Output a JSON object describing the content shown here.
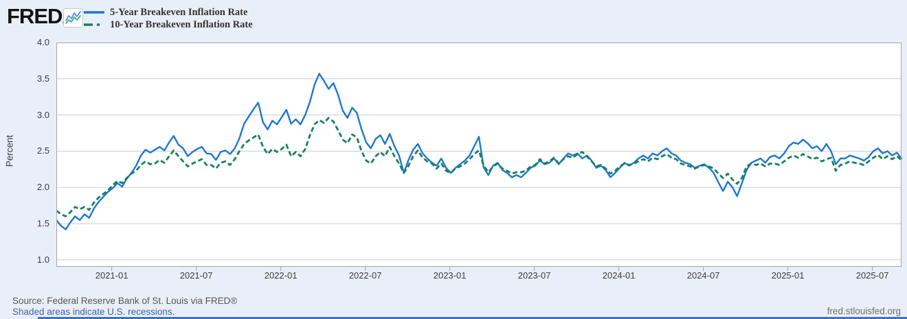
{
  "header": {
    "logo_text": "FRED",
    "logo_reg": "®",
    "legend": [
      {
        "label": "5-Year Breakeven Inflation Rate",
        "color": "#1d76d2",
        "dash": "solid"
      },
      {
        "label": "10-Year Breakeven Inflation Rate",
        "color": "#17805f",
        "dash": "dash-dot"
      }
    ]
  },
  "footer": {
    "source": "Source: Federal Reserve Bank of St. Louis via FRED®",
    "recessions_note": "Shaded areas indicate U.S. recessions.",
    "site": "fred.stlouisfed.org"
  },
  "chart_data": {
    "type": "line",
    "title": "",
    "xlabel": "",
    "ylabel": "Percent",
    "ylim": [
      0.9,
      4.0
    ],
    "yticks": [
      1.0,
      1.5,
      2.0,
      2.5,
      3.0,
      3.5,
      4.0
    ],
    "xtick_labels": [
      "2021-01",
      "2021-07",
      "2022-01",
      "2022-07",
      "2023-01",
      "2023-07",
      "2024-01",
      "2024-07",
      "2025-01",
      "2025-07"
    ],
    "x_start": "2020-09-05",
    "x_end": "2025-09-05",
    "points_per_month": 3,
    "grid": true,
    "legend_position": "top-left",
    "units": "Percent",
    "series": [
      {
        "name": "5-Year Breakeven Inflation Rate",
        "color": "#1d76d2",
        "dash": "solid",
        "values": [
          1.55,
          1.47,
          1.42,
          1.52,
          1.6,
          1.55,
          1.63,
          1.58,
          1.71,
          1.8,
          1.87,
          1.94,
          1.99,
          2.06,
          2.01,
          2.12,
          2.2,
          2.3,
          2.44,
          2.52,
          2.48,
          2.52,
          2.56,
          2.51,
          2.62,
          2.71,
          2.59,
          2.54,
          2.43,
          2.49,
          2.53,
          2.56,
          2.47,
          2.46,
          2.38,
          2.49,
          2.51,
          2.46,
          2.54,
          2.68,
          2.88,
          2.98,
          3.08,
          3.17,
          2.9,
          2.8,
          2.92,
          2.87,
          2.97,
          3.07,
          2.88,
          2.94,
          2.87,
          3.0,
          3.18,
          3.42,
          3.57,
          3.47,
          3.36,
          3.44,
          3.28,
          3.06,
          2.96,
          3.1,
          3.03,
          2.8,
          2.62,
          2.54,
          2.67,
          2.72,
          2.6,
          2.74,
          2.57,
          2.44,
          2.2,
          2.38,
          2.52,
          2.6,
          2.47,
          2.4,
          2.34,
          2.3,
          2.4,
          2.27,
          2.2,
          2.27,
          2.32,
          2.37,
          2.44,
          2.57,
          2.7,
          2.28,
          2.17,
          2.3,
          2.34,
          2.24,
          2.2,
          2.14,
          2.17,
          2.14,
          2.2,
          2.27,
          2.3,
          2.37,
          2.32,
          2.34,
          2.4,
          2.32,
          2.4,
          2.47,
          2.44,
          2.47,
          2.4,
          2.44,
          2.37,
          2.27,
          2.3,
          2.24,
          2.14,
          2.2,
          2.27,
          2.34,
          2.3,
          2.34,
          2.4,
          2.44,
          2.4,
          2.47,
          2.44,
          2.5,
          2.54,
          2.47,
          2.44,
          2.37,
          2.34,
          2.32,
          2.27,
          2.3,
          2.32,
          2.27,
          2.2,
          2.07,
          1.95,
          2.08,
          2.0,
          1.88,
          2.06,
          2.24,
          2.34,
          2.37,
          2.4,
          2.34,
          2.42,
          2.44,
          2.4,
          2.47,
          2.57,
          2.62,
          2.6,
          2.66,
          2.61,
          2.54,
          2.57,
          2.5,
          2.6,
          2.5,
          2.32,
          2.4,
          2.4,
          2.44,
          2.42,
          2.4,
          2.37,
          2.42,
          2.5,
          2.54,
          2.47,
          2.5,
          2.44,
          2.48,
          2.4
        ]
      },
      {
        "name": "10-Year Breakeven Inflation Rate",
        "color": "#17805f",
        "dash": "dash-dot",
        "values": [
          1.68,
          1.63,
          1.6,
          1.66,
          1.73,
          1.7,
          1.73,
          1.69,
          1.79,
          1.86,
          1.91,
          1.96,
          2.03,
          2.09,
          2.06,
          2.13,
          2.19,
          2.23,
          2.31,
          2.36,
          2.32,
          2.33,
          2.38,
          2.34,
          2.43,
          2.51,
          2.43,
          2.36,
          2.29,
          2.33,
          2.36,
          2.39,
          2.31,
          2.31,
          2.26,
          2.34,
          2.36,
          2.31,
          2.39,
          2.5,
          2.6,
          2.65,
          2.69,
          2.73,
          2.56,
          2.46,
          2.53,
          2.49,
          2.53,
          2.59,
          2.43,
          2.49,
          2.43,
          2.53,
          2.72,
          2.87,
          2.93,
          2.89,
          2.96,
          2.91,
          2.79,
          2.66,
          2.61,
          2.73,
          2.69,
          2.5,
          2.37,
          2.33,
          2.43,
          2.49,
          2.43,
          2.56,
          2.43,
          2.33,
          2.2,
          2.3,
          2.43,
          2.51,
          2.41,
          2.36,
          2.33,
          2.26,
          2.33,
          2.23,
          2.2,
          2.26,
          2.29,
          2.33,
          2.39,
          2.46,
          2.51,
          2.3,
          2.21,
          2.29,
          2.33,
          2.26,
          2.23,
          2.19,
          2.21,
          2.21,
          2.23,
          2.29,
          2.31,
          2.39,
          2.33,
          2.36,
          2.41,
          2.33,
          2.39,
          2.43,
          2.41,
          2.46,
          2.49,
          2.43,
          2.36,
          2.29,
          2.31,
          2.26,
          2.19,
          2.23,
          2.29,
          2.33,
          2.31,
          2.33,
          2.36,
          2.39,
          2.36,
          2.41,
          2.39,
          2.43,
          2.46,
          2.41,
          2.39,
          2.33,
          2.31,
          2.29,
          2.26,
          2.29,
          2.31,
          2.29,
          2.26,
          2.19,
          2.13,
          2.19,
          2.11,
          2.05,
          2.13,
          2.29,
          2.33,
          2.31,
          2.33,
          2.29,
          2.33,
          2.33,
          2.31,
          2.36,
          2.41,
          2.44,
          2.41,
          2.46,
          2.43,
          2.39,
          2.41,
          2.36,
          2.39,
          2.41,
          2.23,
          2.31,
          2.33,
          2.36,
          2.34,
          2.33,
          2.31,
          2.36,
          2.41,
          2.45,
          2.39,
          2.43,
          2.39,
          2.43,
          2.38
        ]
      }
    ]
  }
}
